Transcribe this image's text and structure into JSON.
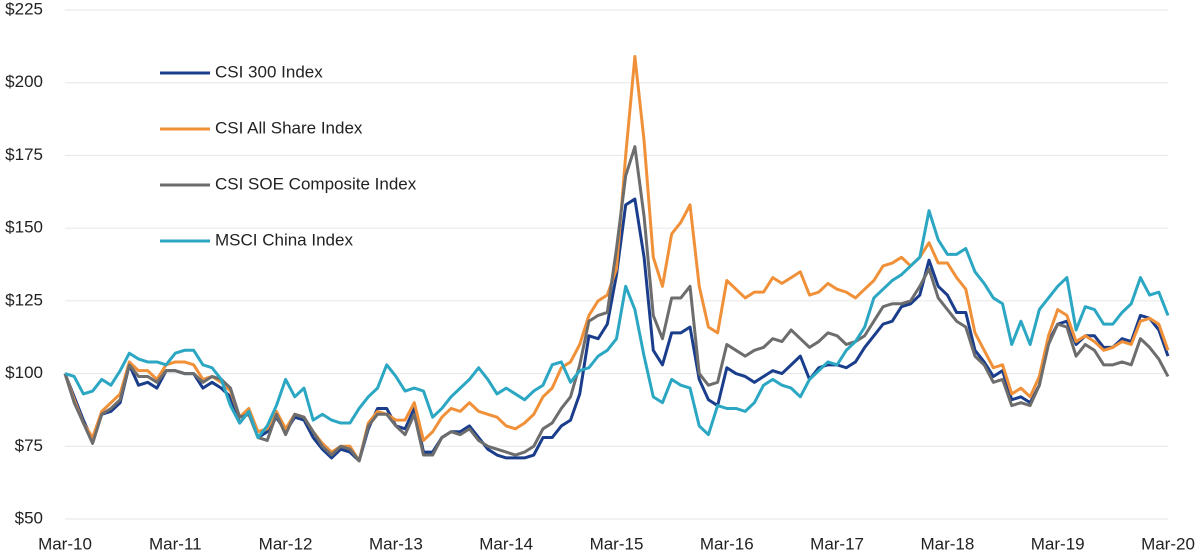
{
  "chart_data": {
    "type": "line",
    "categories": [
      "Mar-10",
      null,
      null,
      null,
      null,
      null,
      null,
      null,
      null,
      null,
      null,
      null,
      "Mar-11",
      null,
      null,
      null,
      null,
      null,
      null,
      null,
      null,
      null,
      null,
      null,
      "Mar-12",
      null,
      null,
      null,
      null,
      null,
      null,
      null,
      null,
      null,
      null,
      null,
      "Mar-13",
      null,
      null,
      null,
      null,
      null,
      null,
      null,
      null,
      null,
      null,
      null,
      "Mar-14",
      null,
      null,
      null,
      null,
      null,
      null,
      null,
      null,
      null,
      null,
      null,
      "Mar-15",
      null,
      null,
      null,
      null,
      null,
      null,
      null,
      null,
      null,
      null,
      null,
      "Mar-16",
      null,
      null,
      null,
      null,
      null,
      null,
      null,
      null,
      null,
      null,
      null,
      "Mar-17",
      null,
      null,
      null,
      null,
      null,
      null,
      null,
      null,
      null,
      null,
      null,
      "Mar-18",
      null,
      null,
      null,
      null,
      null,
      null,
      null,
      null,
      null,
      null,
      null,
      "Mar-19",
      null,
      null,
      null,
      null,
      null,
      null,
      null,
      null,
      null,
      null,
      null,
      "Mar-20"
    ],
    "series": [
      {
        "name": "CSI 300 Index",
        "color": "#1a3d8c",
        "values": [
          100,
          92,
          84,
          77,
          86,
          87,
          90,
          103,
          96,
          97,
          95,
          101,
          101,
          100,
          100,
          95,
          97,
          95,
          92,
          83,
          87,
          78,
          80,
          85,
          80,
          85,
          84,
          78,
          74,
          71,
          74,
          73,
          70,
          81,
          88,
          88,
          82,
          81,
          88,
          73,
          73,
          78,
          80,
          80,
          82,
          78,
          74,
          72,
          71,
          71,
          71,
          72,
          78,
          78,
          82,
          84,
          93,
          113,
          112,
          117,
          134,
          158,
          160,
          140,
          108,
          103,
          114,
          114,
          116,
          98,
          91,
          89,
          102,
          100,
          99,
          97,
          99,
          101,
          100,
          103,
          106,
          98,
          102,
          103,
          103,
          102,
          104,
          109,
          113,
          117,
          118,
          123,
          124,
          127,
          139,
          130,
          127,
          121,
          121,
          108,
          104,
          99,
          101,
          91,
          92,
          90,
          96,
          111,
          117,
          118,
          110,
          113,
          113,
          109,
          109,
          112,
          111,
          120,
          119,
          115,
          106
        ]
      },
      {
        "name": "CSI All Share Index",
        "color": "#f0913a",
        "values": [
          100,
          91,
          83,
          78,
          87,
          90,
          93,
          104,
          101,
          101,
          98,
          103,
          104,
          104,
          103,
          98,
          99,
          97,
          94,
          85,
          88,
          80,
          81,
          87,
          81,
          86,
          85,
          80,
          76,
          73,
          75,
          75,
          70,
          83,
          87,
          86,
          84,
          84,
          90,
          77,
          80,
          85,
          88,
          87,
          90,
          87,
          86,
          85,
          82,
          81,
          83,
          86,
          92,
          95,
          102,
          104,
          110,
          120,
          125,
          127,
          136,
          175,
          209,
          180,
          140,
          130,
          148,
          152,
          158,
          130,
          116,
          114,
          132,
          129,
          126,
          128,
          128,
          133,
          131,
          133,
          135,
          127,
          128,
          131,
          129,
          128,
          126,
          129,
          132,
          137,
          138,
          140,
          137,
          140,
          145,
          138,
          138,
          133,
          129,
          114,
          108,
          102,
          103,
          93,
          95,
          92,
          99,
          113,
          122,
          120,
          111,
          113,
          111,
          108,
          109,
          111,
          110,
          118,
          119,
          117,
          108
        ]
      },
      {
        "name": "CSI SOE Composite Index",
        "color": "#6d6d6d",
        "values": [
          100,
          90,
          83,
          76,
          86,
          88,
          91,
          103,
          99,
          99,
          97,
          101,
          101,
          100,
          100,
          97,
          99,
          98,
          95,
          85,
          86,
          78,
          77,
          86,
          79,
          86,
          85,
          80,
          75,
          72,
          75,
          74,
          70,
          82,
          86,
          86,
          82,
          79,
          86,
          72,
          72,
          78,
          80,
          79,
          81,
          77,
          75,
          74,
          73,
          72,
          73,
          75,
          81,
          83,
          88,
          92,
          103,
          118,
          120,
          121,
          143,
          168,
          178,
          154,
          120,
          112,
          126,
          126,
          130,
          100,
          96,
          97,
          110,
          108,
          106,
          108,
          109,
          112,
          111,
          115,
          112,
          109,
          111,
          114,
          113,
          110,
          111,
          113,
          118,
          123,
          124,
          124,
          125,
          130,
          136,
          126,
          122,
          118,
          116,
          106,
          103,
          97,
          98,
          89,
          90,
          89,
          96,
          110,
          117,
          116,
          106,
          110,
          108,
          103,
          103,
          104,
          103,
          112,
          109,
          105,
          99
        ]
      },
      {
        "name": "MSCI China Index",
        "color": "#2ba7c3",
        "values": [
          100,
          99,
          93,
          94,
          98,
          96,
          101,
          107,
          105,
          104,
          104,
          103,
          107,
          108,
          108,
          103,
          102,
          98,
          89,
          83,
          87,
          78,
          82,
          89,
          98,
          92,
          95,
          84,
          86,
          84,
          83,
          83,
          88,
          92,
          95,
          103,
          99,
          94,
          95,
          94,
          85,
          88,
          92,
          95,
          98,
          102,
          98,
          93,
          95,
          93,
          91,
          94,
          96,
          103,
          104,
          97,
          101,
          102,
          106,
          108,
          112,
          130,
          122,
          106,
          92,
          90,
          98,
          96,
          95,
          82,
          79,
          89,
          88,
          88,
          87,
          90,
          96,
          98,
          96,
          95,
          92,
          98,
          101,
          104,
          103,
          108,
          111,
          116,
          126,
          129,
          132,
          134,
          137,
          140,
          156,
          146,
          141,
          141,
          143,
          135,
          131,
          126,
          124,
          110,
          118,
          110,
          122,
          126,
          130,
          133,
          115,
          123,
          122,
          117,
          117,
          121,
          124,
          133,
          127,
          128,
          120
        ]
      }
    ],
    "ylim": [
      50,
      225
    ],
    "yticks": [
      {
        "value": 50,
        "label": "$50"
      },
      {
        "value": 75,
        "label": "$75"
      },
      {
        "value": 100,
        "label": "$100"
      },
      {
        "value": 125,
        "label": "$125"
      },
      {
        "value": 150,
        "label": "$150"
      },
      {
        "value": 175,
        "label": "$175"
      },
      {
        "value": 200,
        "label": "$200"
      },
      {
        "value": 225,
        "label": "$225"
      }
    ],
    "grid": true,
    "legend": "upper left"
  }
}
